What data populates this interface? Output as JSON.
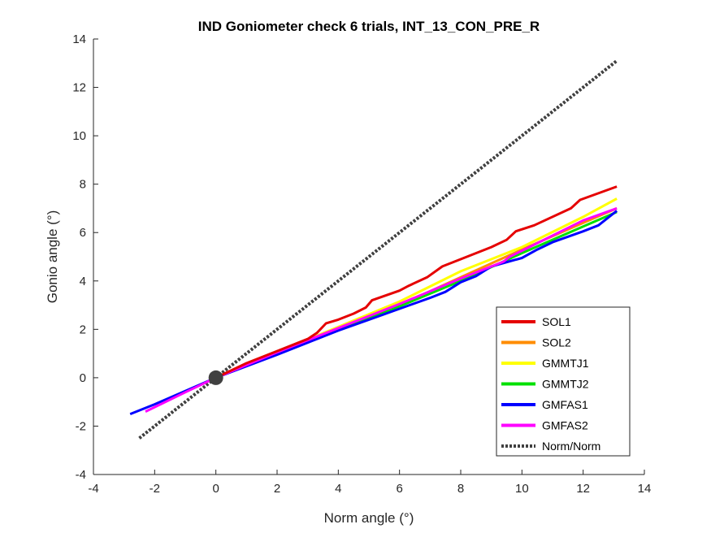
{
  "chart_data": {
    "type": "line",
    "title": "IND Goniometer check 6 trials, INT_13_CON_PRE_R",
    "xlabel": "Norm angle (°)",
    "ylabel": "Gonio angle (°)",
    "xlim": [
      -4,
      14
    ],
    "ylim": [
      -4,
      14
    ],
    "xticks": [
      -4,
      -2,
      0,
      2,
      4,
      6,
      8,
      10,
      12,
      14
    ],
    "yticks": [
      -4,
      -2,
      0,
      2,
      4,
      6,
      8,
      10,
      12,
      14
    ],
    "grid": false,
    "legend_position": "bottom-right",
    "series": [
      {
        "name": "SOL1",
        "color": "#e50000",
        "style": "solid",
        "x": [
          0,
          1,
          2,
          3,
          3.3,
          3.6,
          4,
          4.5,
          4.9,
          5.1,
          6,
          6.3,
          6.9,
          7.4,
          8,
          9,
          9.5,
          9.8,
          10.4,
          11.6,
          11.9,
          13.1
        ],
        "y": [
          0,
          0.6,
          1.1,
          1.6,
          1.85,
          2.25,
          2.4,
          2.65,
          2.9,
          3.2,
          3.6,
          3.8,
          4.15,
          4.6,
          4.9,
          5.4,
          5.7,
          6.05,
          6.3,
          7.0,
          7.35,
          7.9
        ]
      },
      {
        "name": "SOL2",
        "color": "#ff8c00",
        "style": "solid",
        "x": [
          0,
          2,
          4,
          6,
          8,
          10,
          12,
          13.1
        ],
        "y": [
          0,
          1.05,
          2.05,
          3.0,
          4.15,
          5.3,
          6.4,
          7.0
        ]
      },
      {
        "name": "GMMTJ1",
        "color": "#ffff00",
        "style": "solid",
        "x": [
          0,
          2,
          4,
          6,
          8,
          10,
          12,
          13.1
        ],
        "y": [
          0,
          1.05,
          2.1,
          3.15,
          4.4,
          5.4,
          6.65,
          7.4
        ]
      },
      {
        "name": "GMMTJ2",
        "color": "#00e000",
        "style": "solid",
        "x": [
          0,
          2,
          4,
          6,
          8,
          10,
          12,
          13.1
        ],
        "y": [
          0,
          1.0,
          2.0,
          2.95,
          4.0,
          5.15,
          6.25,
          6.85
        ]
      },
      {
        "name": "GMFAS1",
        "color": "#0000ff",
        "style": "solid",
        "x": [
          -2.8,
          -2,
          -1,
          0,
          2,
          4,
          5,
          6,
          7,
          7.5,
          8,
          8.5,
          9,
          10,
          10.5,
          11,
          12,
          12.5,
          13.1
        ],
        "y": [
          -1.5,
          -1.1,
          -0.55,
          0,
          0.95,
          1.95,
          2.4,
          2.85,
          3.3,
          3.55,
          3.95,
          4.2,
          4.6,
          4.95,
          5.3,
          5.6,
          6.05,
          6.3,
          6.9
        ]
      },
      {
        "name": "GMFAS2",
        "color": "#ff00ff",
        "style": "solid",
        "x": [
          -2.3,
          -1,
          0,
          2,
          4,
          6,
          8,
          9.4,
          9.6,
          10,
          12,
          13.1
        ],
        "y": [
          -1.4,
          -0.6,
          0,
          1.05,
          2.05,
          3.05,
          4.1,
          4.8,
          5.0,
          5.25,
          6.5,
          7.0
        ]
      },
      {
        "name": "Norm/Norm",
        "color": "#404040",
        "style": "dotted",
        "x": [
          -2.5,
          13.1
        ],
        "y": [
          -2.5,
          13.1
        ]
      }
    ],
    "origin_marker": {
      "x": 0,
      "y": 0,
      "color": "#404040"
    }
  }
}
